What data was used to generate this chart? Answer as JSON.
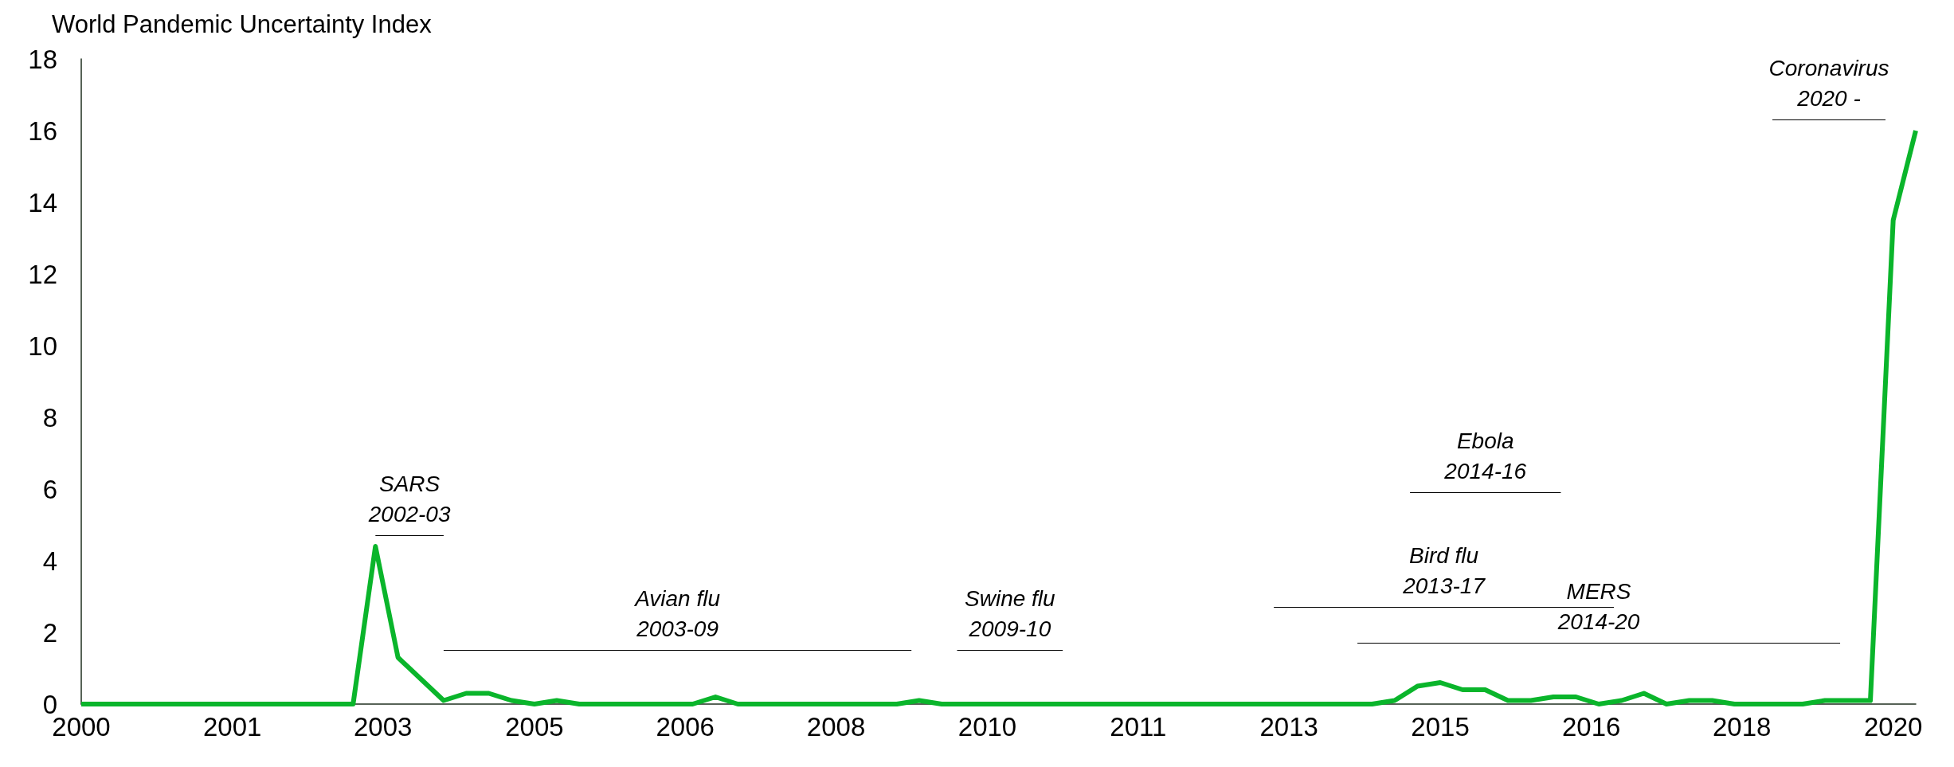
{
  "chart_data": {
    "type": "line",
    "title": "World Pandemic Uncertainty Index",
    "xlim": [
      "2000-01",
      "2020-04"
    ],
    "ylim": [
      0,
      18
    ],
    "yticks": [
      0,
      2,
      4,
      6,
      8,
      10,
      12,
      14,
      16,
      18
    ],
    "grid": false,
    "xticks": [
      {
        "value": "2000-01",
        "label": "2000"
      },
      {
        "value": "2001-09",
        "label": "2001"
      },
      {
        "value": "2003-05",
        "label": "2003"
      },
      {
        "value": "2005-01",
        "label": "2005"
      },
      {
        "value": "2006-09",
        "label": "2006"
      },
      {
        "value": "2008-05",
        "label": "2008"
      },
      {
        "value": "2010-01",
        "label": "2010"
      },
      {
        "value": "2011-09",
        "label": "2011"
      },
      {
        "value": "2013-05",
        "label": "2013"
      },
      {
        "value": "2015-01",
        "label": "2015"
      },
      {
        "value": "2016-09",
        "label": "2016"
      },
      {
        "value": "2018-05",
        "label": "2018"
      },
      {
        "value": "2020-01",
        "label": "2020"
      }
    ],
    "series": [
      {
        "color": "#0ab52b",
        "x": [
          "2000-01",
          "2000-04",
          "2000-07",
          "2000-10",
          "2001-01",
          "2001-04",
          "2001-07",
          "2001-10",
          "2002-01",
          "2002-04",
          "2002-07",
          "2002-10",
          "2003-01",
          "2003-04",
          "2003-07",
          "2003-10",
          "2004-01",
          "2004-04",
          "2004-07",
          "2004-10",
          "2005-01",
          "2005-04",
          "2005-07",
          "2005-10",
          "2006-01",
          "2006-04",
          "2006-07",
          "2006-10",
          "2007-01",
          "2007-04",
          "2007-07",
          "2007-10",
          "2008-01",
          "2008-04",
          "2008-07",
          "2008-10",
          "2009-01",
          "2009-04",
          "2009-07",
          "2009-10",
          "2010-01",
          "2010-04",
          "2010-07",
          "2010-10",
          "2011-01",
          "2011-04",
          "2011-07",
          "2011-10",
          "2012-01",
          "2012-04",
          "2012-07",
          "2012-10",
          "2013-01",
          "2013-04",
          "2013-07",
          "2013-10",
          "2014-01",
          "2014-04",
          "2014-07",
          "2014-10",
          "2015-01",
          "2015-04",
          "2015-07",
          "2015-10",
          "2016-01",
          "2016-04",
          "2016-07",
          "2016-10",
          "2017-01",
          "2017-04",
          "2017-07",
          "2017-10",
          "2018-01",
          "2018-04",
          "2018-07",
          "2018-10",
          "2019-01",
          "2019-04",
          "2019-07",
          "2019-10",
          "2020-01",
          "2020-04"
        ],
        "values": [
          0,
          0,
          0,
          0,
          0,
          0,
          0,
          0,
          0,
          0,
          0,
          0,
          0,
          4.4,
          1.3,
          0.7,
          0.1,
          0.3,
          0.3,
          0.1,
          0,
          0.1,
          0,
          0,
          0,
          0,
          0,
          0,
          0.2,
          0,
          0,
          0,
          0,
          0,
          0,
          0,
          0,
          0.1,
          0,
          0,
          0,
          0,
          0,
          0,
          0,
          0,
          0,
          0,
          0,
          0,
          0,
          0,
          0,
          0,
          0,
          0,
          0,
          0,
          0.1,
          0.5,
          0.6,
          0.4,
          0.4,
          0.1,
          0.1,
          0.2,
          0.2,
          0,
          0.1,
          0.3,
          0,
          0.1,
          0.1,
          0,
          0,
          0,
          0,
          0.1,
          0.1,
          0.1,
          13.5,
          16
        ]
      },
      {
        "color": "#000000",
        "x": [
          "2003-04",
          "2004-01"
        ],
        "values": [
          4.7,
          4.7
        ]
      },
      {
        "color": "#000000",
        "x": [
          "2004-01",
          "2009-03"
        ],
        "values": [
          1.5,
          1.5
        ]
      },
      {
        "color": "#000000",
        "x": [
          "2009-09",
          "2010-11"
        ],
        "values": [
          1.5,
          1.5
        ]
      },
      {
        "color": "#000000",
        "x": [
          "2013-03",
          "2016-12"
        ],
        "values": [
          2.7,
          2.7
        ]
      },
      {
        "color": "#000000",
        "x": [
          "2014-09",
          "2016-05"
        ],
        "values": [
          5.9,
          5.9
        ]
      },
      {
        "color": "#000000",
        "x": [
          "2014-02",
          "2019-06"
        ],
        "values": [
          1.7,
          1.7
        ]
      },
      {
        "color": "#000000",
        "x": [
          "2018-09",
          "2019-12"
        ],
        "values": [
          16.3,
          16.3
        ]
      }
    ],
    "annotations": [
      "SARS\n2002-03",
      "Avian flu\n2003-09",
      "Swine flu\n2009-10",
      "Bird flu\n2013-17",
      "Ebola\n2014-16",
      "MERS\n2014-20",
      "Coronavirus\n2020 -"
    ]
  }
}
